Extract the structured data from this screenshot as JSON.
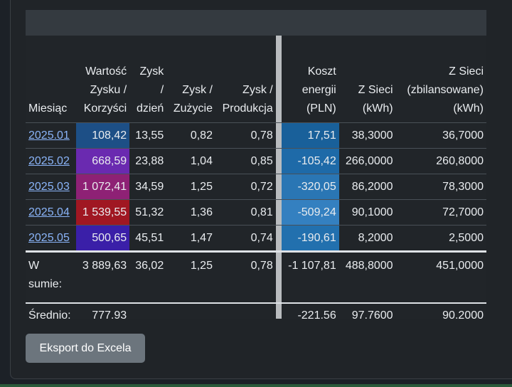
{
  "table": {
    "headers": [
      [
        "",
        "",
        "Miesiąc"
      ],
      [
        "Wartość",
        "Zysku /",
        "Korzyści"
      ],
      [
        "Zysk",
        "/",
        "dzień"
      ],
      [
        "",
        "Zysk /",
        "Zużycie"
      ],
      [
        "",
        "Zysk /",
        "Produkcja"
      ],
      [
        "",
        "",
        ""
      ],
      [
        "Koszt",
        "energii",
        "(PLN)"
      ],
      [
        "",
        "Z Sieci",
        "(kWh)"
      ],
      [
        "Z Sieci",
        "(zbilansowane)",
        "(kWh)"
      ]
    ],
    "rows": [
      {
        "month": "2025.01",
        "value": "108,42",
        "value_color": "#1d4f86",
        "per_day": "13,55",
        "gain_use": "0,82",
        "gain_prod": "0,78",
        "cost": "17,51",
        "cost_color": "#19609a",
        "grid": "38,3000",
        "grid_bal": "36,7000"
      },
      {
        "month": "2025.02",
        "value": "668,59",
        "value_color": "#6a2ab0",
        "per_day": "23,88",
        "gain_use": "1,04",
        "gain_prod": "0,85",
        "cost": "-105,42",
        "cost_color": "#1e6aa8",
        "grid": "266,0000",
        "grid_bal": "260,8000"
      },
      {
        "month": "2025.03",
        "value": "1 072,41",
        "value_color": "#8e2175",
        "per_day": "34,59",
        "gain_use": "1,25",
        "gain_prod": "0,72",
        "cost": "-320,05",
        "cost_color": "#2a76b4",
        "grid": "86,2000",
        "grid_bal": "78,3000"
      },
      {
        "month": "2025.04",
        "value": "1 539,55",
        "value_color": "#a01722",
        "per_day": "51,32",
        "gain_use": "1,36",
        "gain_prod": "0,81",
        "cost": "-509,24",
        "cost_color": "#3480c0",
        "grid": "90,1000",
        "grid_bal": "72,7000"
      },
      {
        "month": "2025.05",
        "value": "500,65",
        "value_color": "#3a1fa8",
        "per_day": "45,51",
        "gain_use": "1,47",
        "gain_prod": "0,74",
        "cost": "-190,61",
        "cost_color": "#2270ae",
        "grid": "8,2000",
        "grid_bal": "2,5000"
      }
    ],
    "sum": {
      "label_1": "W",
      "label_2": "sumie:",
      "value": "3 889,63",
      "per_day": "36,02",
      "gain_use": "1,25",
      "gain_prod": "0,78",
      "cost": "-1 107,81",
      "grid": "488,8000",
      "grid_bal": "451,0000"
    },
    "avg": {
      "label": "Średnio:",
      "value": "777,93",
      "per_day": "",
      "gain_use": "",
      "gain_prod": "",
      "cost": "-221,56",
      "grid": "97,7600",
      "grid_bal": "90,2000"
    }
  },
  "export_button": "Eksport do Excela"
}
